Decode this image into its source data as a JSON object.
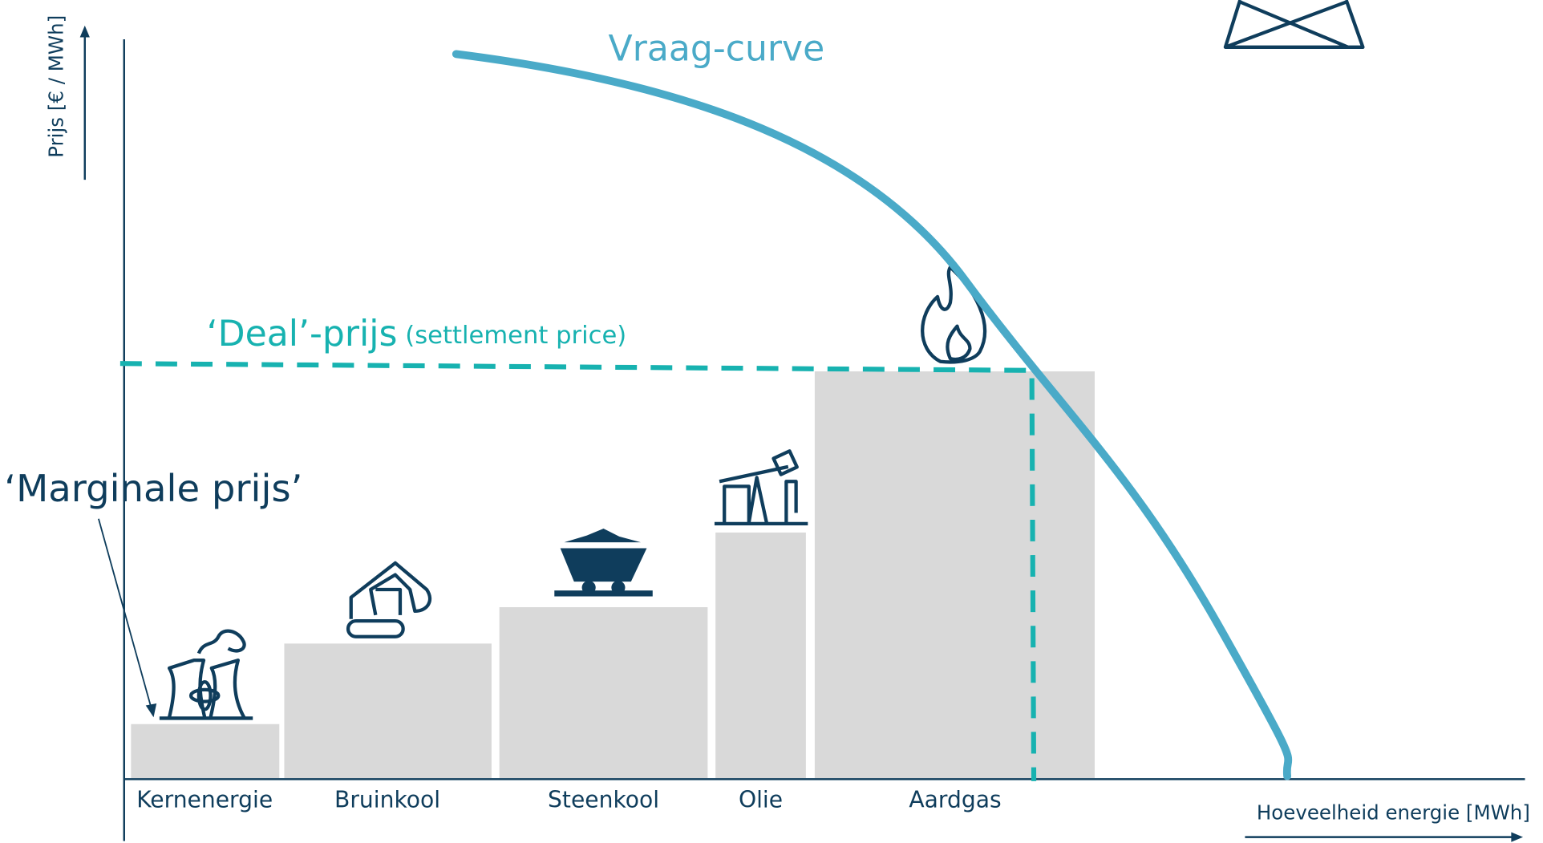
{
  "demand_label": "Vraag-curve",
  "settlement": {
    "label": "‘Deal’-prijs",
    "note": "(settlement price)"
  },
  "marginal_label": "‘Marginale prijs’",
  "y_axis_label": "Prijs [€ / MWh]",
  "x_axis_label": "Hoeveelheid energie [MWh]",
  "sources": [
    "Kernenergie",
    "Bruinkool",
    "Steenkool",
    "Olie",
    "Aardgas"
  ]
}
